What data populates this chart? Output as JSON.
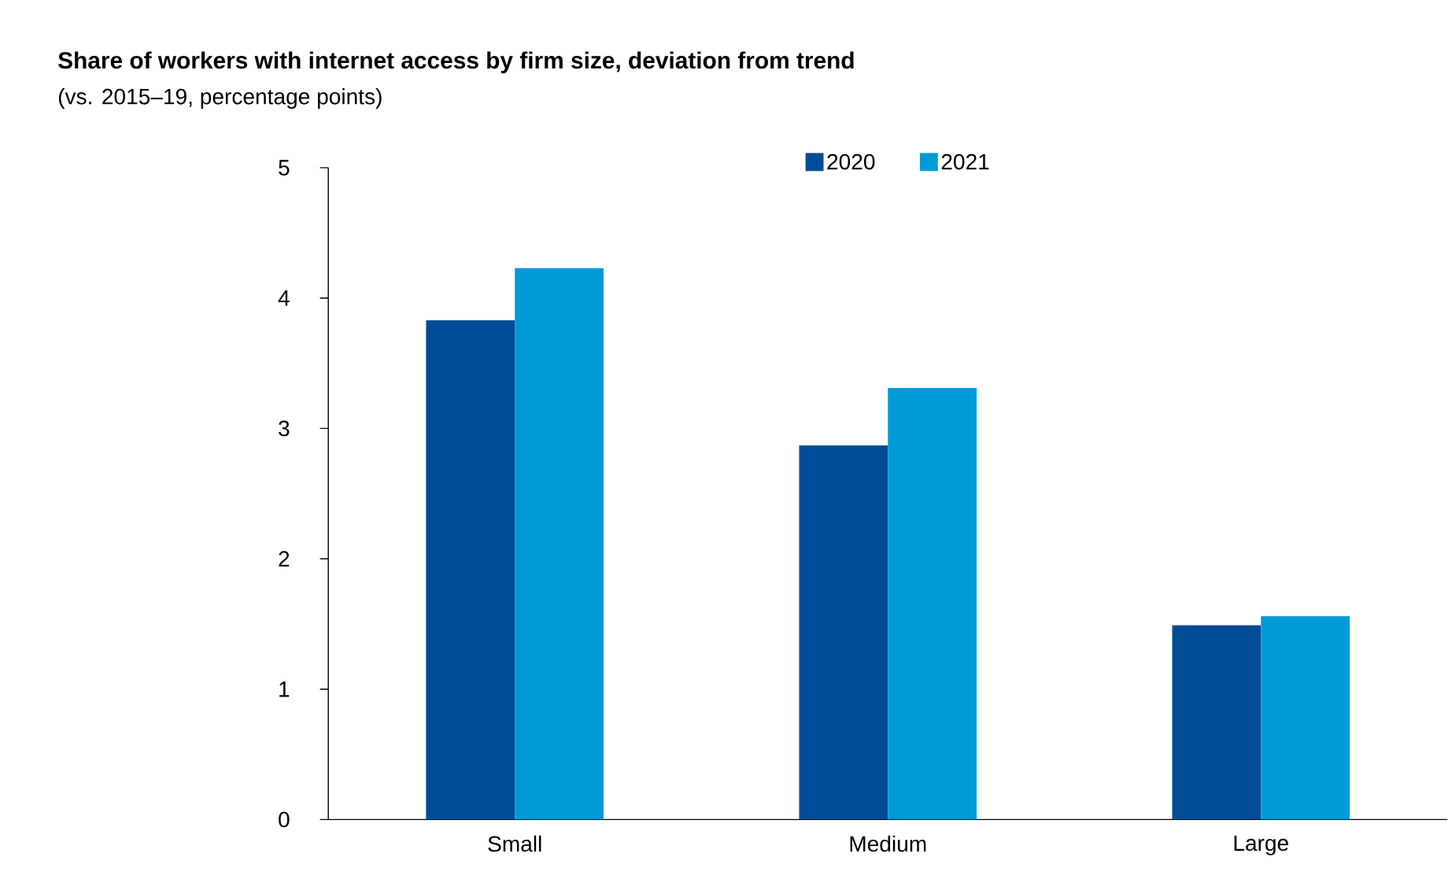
{
  "chart_data": {
    "type": "bar",
    "title": "Share of workers with internet access by firm size, deviation from trend",
    "subtitle": "(vs. 2015–19, percentage points)",
    "categories": [
      "Small",
      "Medium",
      "Large"
    ],
    "series": [
      {
        "name": "2020",
        "color": "#004c97",
        "values": [
          3.83,
          2.87,
          1.49
        ]
      },
      {
        "name": "2021",
        "color": "#009ad9",
        "values": [
          4.23,
          3.31,
          1.56
        ]
      }
    ],
    "ylim": [
      0,
      5
    ],
    "yticks": [
      0,
      1,
      2,
      3,
      4,
      5
    ],
    "grid": false,
    "legend": "top"
  }
}
